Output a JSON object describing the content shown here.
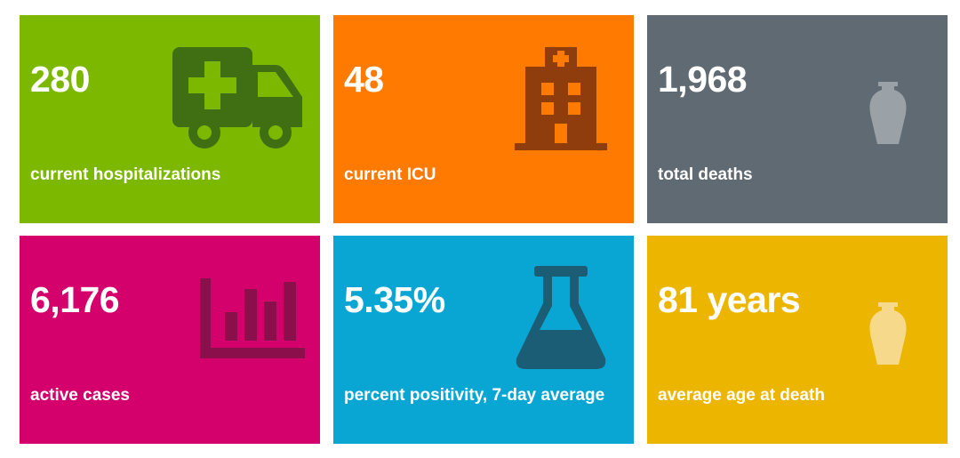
{
  "colors": {
    "green": "#7cb800",
    "orange": "#ff7a00",
    "gray": "#5f6a72",
    "magenta": "#d4006c",
    "blue": "#0aa6d3",
    "gold": "#ecb600"
  },
  "tiles": [
    {
      "value": "280",
      "label": "current hospitalizations",
      "icon": "ambulance-icon",
      "color": "#7cb800"
    },
    {
      "value": "48",
      "label": "current ICU",
      "icon": "hospital-icon",
      "color": "#ff7a00"
    },
    {
      "value": "1,968",
      "label": "total deaths",
      "icon": "urn-icon",
      "color": "#5f6a72"
    },
    {
      "value": "6,176",
      "label": "active cases",
      "icon": "bar-chart-icon",
      "color": "#d4006c"
    },
    {
      "value": "5.35%",
      "label": "percent positivity, 7-day average",
      "icon": "flask-icon",
      "color": "#0aa6d3"
    },
    {
      "value": "81 years",
      "label": "average age at death",
      "icon": "urn-icon",
      "color": "#ecb600"
    }
  ]
}
